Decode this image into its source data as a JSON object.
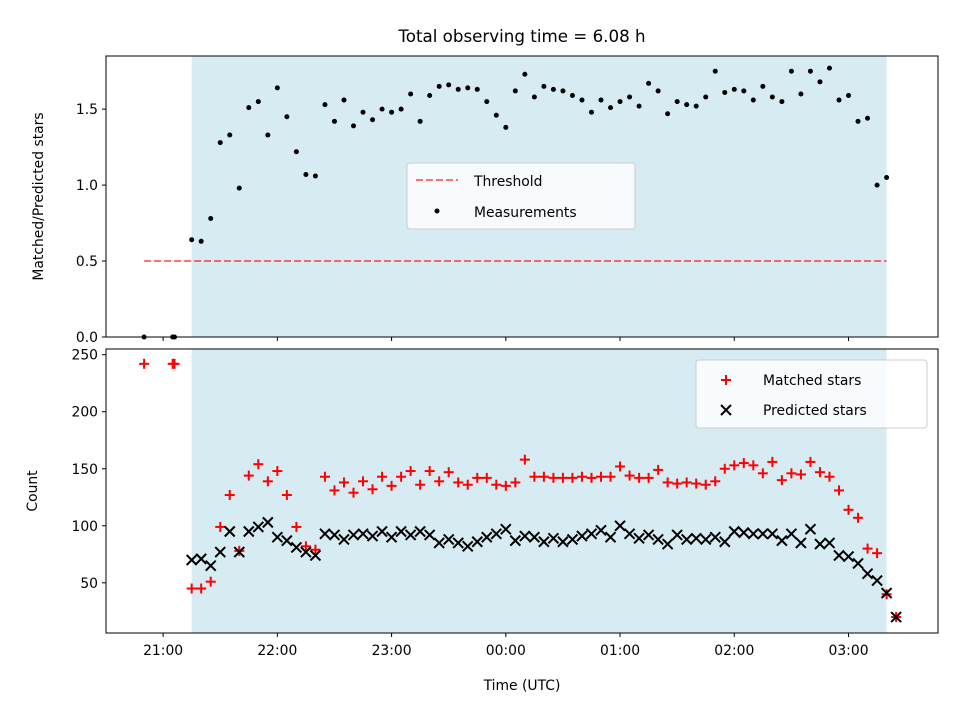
{
  "colors": {
    "shade": "#add8e6",
    "threshold": "#ff0000",
    "measurements": "#000000",
    "matched": "#ff0000",
    "predicted": "#000000"
  },
  "chart_data": [
    {
      "type": "scatter",
      "title": "Total observing time = 6.08 h",
      "xlabel": "",
      "ylabel": "Matched/Predicted stars",
      "xlim": [
        "20:30",
        "03:47"
      ],
      "ylim": [
        0,
        1.85
      ],
      "yticks": [
        0.0,
        0.5,
        1.0,
        1.5
      ],
      "ytick_labels": [
        "0.0",
        "0.5",
        "1.0",
        "1.5"
      ],
      "shaded_span": [
        "21:15",
        "03:20"
      ],
      "legend": {
        "position": "center",
        "entries": [
          "Threshold",
          "Measurements"
        ]
      },
      "threshold": {
        "name": "Threshold",
        "y": 0.5,
        "x": [
          "20:50",
          "03:20"
        ]
      },
      "series": [
        {
          "name": "Measurements",
          "points": [
            [
              "20:50",
              0.0
            ],
            [
              "21:05",
              0.0
            ],
            [
              "21:06",
              0.0
            ],
            [
              "21:15",
              0.64
            ],
            [
              "21:20",
              0.63
            ],
            [
              "21:25",
              0.78
            ],
            [
              "21:30",
              1.28
            ],
            [
              "21:35",
              1.33
            ],
            [
              "21:40",
              0.98
            ],
            [
              "21:45",
              1.51
            ],
            [
              "21:50",
              1.55
            ],
            [
              "21:55",
              1.33
            ],
            [
              "22:00",
              1.64
            ],
            [
              "22:05",
              1.45
            ],
            [
              "22:10",
              1.22
            ],
            [
              "22:15",
              1.07
            ],
            [
              "22:20",
              1.06
            ],
            [
              "22:25",
              1.53
            ],
            [
              "22:30",
              1.42
            ],
            [
              "22:35",
              1.56
            ],
            [
              "22:40",
              1.39
            ],
            [
              "22:45",
              1.48
            ],
            [
              "22:50",
              1.43
            ],
            [
              "22:55",
              1.5
            ],
            [
              "23:00",
              1.48
            ],
            [
              "23:05",
              1.5
            ],
            [
              "23:10",
              1.6
            ],
            [
              "23:15",
              1.42
            ],
            [
              "23:20",
              1.59
            ],
            [
              "23:25",
              1.65
            ],
            [
              "23:30",
              1.66
            ],
            [
              "23:35",
              1.63
            ],
            [
              "23:40",
              1.64
            ],
            [
              "23:45",
              1.63
            ],
            [
              "23:50",
              1.55
            ],
            [
              "23:55",
              1.46
            ],
            [
              "00:00",
              1.38
            ],
            [
              "00:05",
              1.62
            ],
            [
              "00:10",
              1.73
            ],
            [
              "00:15",
              1.58
            ],
            [
              "00:20",
              1.65
            ],
            [
              "00:25",
              1.63
            ],
            [
              "00:30",
              1.62
            ],
            [
              "00:35",
              1.59
            ],
            [
              "00:40",
              1.56
            ],
            [
              "00:45",
              1.48
            ],
            [
              "00:50",
              1.56
            ],
            [
              "00:55",
              1.51
            ],
            [
              "01:00",
              1.55
            ],
            [
              "01:05",
              1.58
            ],
            [
              "01:10",
              1.52
            ],
            [
              "01:15",
              1.67
            ],
            [
              "01:20",
              1.62
            ],
            [
              "01:25",
              1.47
            ],
            [
              "01:30",
              1.55
            ],
            [
              "01:35",
              1.53
            ],
            [
              "01:40",
              1.52
            ],
            [
              "01:45",
              1.58
            ],
            [
              "01:50",
              1.75
            ],
            [
              "01:55",
              1.61
            ],
            [
              "02:00",
              1.63
            ],
            [
              "02:05",
              1.62
            ],
            [
              "02:10",
              1.56
            ],
            [
              "02:15",
              1.65
            ],
            [
              "02:20",
              1.58
            ],
            [
              "02:25",
              1.55
            ],
            [
              "02:30",
              1.75
            ],
            [
              "02:35",
              1.6
            ],
            [
              "02:40",
              1.75
            ],
            [
              "02:45",
              1.68
            ],
            [
              "02:50",
              1.77
            ],
            [
              "02:55",
              1.56
            ],
            [
              "03:00",
              1.59
            ],
            [
              "03:05",
              1.42
            ],
            [
              "03:10",
              1.44
            ],
            [
              "03:15",
              1.0
            ],
            [
              "03:20",
              1.05
            ]
          ]
        }
      ]
    },
    {
      "type": "scatter",
      "title": "",
      "xlabel": "Time (UTC)",
      "ylabel": "Count",
      "xlim": [
        "20:30",
        "03:47"
      ],
      "ylim": [
        6,
        255
      ],
      "xticks": [
        "21:00",
        "22:00",
        "23:00",
        "00:00",
        "01:00",
        "02:00",
        "03:00"
      ],
      "yticks": [
        50,
        100,
        150,
        200,
        250
      ],
      "shaded_span": [
        "21:15",
        "03:20"
      ],
      "legend": {
        "position": "upper right",
        "entries": [
          "Matched stars",
          "Predicted stars"
        ]
      },
      "series": [
        {
          "name": "Matched stars",
          "marker": "+",
          "points": [
            [
              "20:50",
              242
            ],
            [
              "21:05",
              242
            ],
            [
              "21:06",
              242
            ],
            [
              "21:15",
              45
            ],
            [
              "21:20",
              45
            ],
            [
              "21:25",
              51
            ],
            [
              "21:30",
              99
            ],
            [
              "21:35",
              127
            ],
            [
              "21:40",
              78
            ],
            [
              "21:45",
              144
            ],
            [
              "21:50",
              154
            ],
            [
              "21:55",
              139
            ],
            [
              "22:00",
              148
            ],
            [
              "22:05",
              127
            ],
            [
              "22:10",
              99
            ],
            [
              "22:15",
              82
            ],
            [
              "22:20",
              79
            ],
            [
              "22:25",
              143
            ],
            [
              "22:30",
              131
            ],
            [
              "22:35",
              138
            ],
            [
              "22:40",
              129
            ],
            [
              "22:45",
              139
            ],
            [
              "22:50",
              132
            ],
            [
              "22:55",
              143
            ],
            [
              "23:00",
              135
            ],
            [
              "23:05",
              143
            ],
            [
              "23:10",
              148
            ],
            [
              "23:15",
              136
            ],
            [
              "23:20",
              148
            ],
            [
              "23:25",
              139
            ],
            [
              "23:30",
              147
            ],
            [
              "23:35",
              138
            ],
            [
              "23:40",
              136
            ],
            [
              "23:45",
              142
            ],
            [
              "23:50",
              142
            ],
            [
              "23:55",
              136
            ],
            [
              "00:00",
              135
            ],
            [
              "00:05",
              138
            ],
            [
              "00:10",
              158
            ],
            [
              "00:15",
              143
            ],
            [
              "00:20",
              143
            ],
            [
              "00:25",
              142
            ],
            [
              "00:30",
              142
            ],
            [
              "00:35",
              142
            ],
            [
              "00:40",
              143
            ],
            [
              "00:45",
              142
            ],
            [
              "00:50",
              143
            ],
            [
              "00:55",
              143
            ],
            [
              "01:00",
              152
            ],
            [
              "01:05",
              144
            ],
            [
              "01:10",
              142
            ],
            [
              "01:15",
              142
            ],
            [
              "01:20",
              149
            ],
            [
              "01:25",
              138
            ],
            [
              "01:30",
              137
            ],
            [
              "01:35",
              138
            ],
            [
              "01:40",
              137
            ],
            [
              "01:45",
              136
            ],
            [
              "01:50",
              139
            ],
            [
              "01:55",
              150
            ],
            [
              "02:00",
              153
            ],
            [
              "02:05",
              155
            ],
            [
              "02:10",
              153
            ],
            [
              "02:15",
              146
            ],
            [
              "02:20",
              156
            ],
            [
              "02:25",
              140
            ],
            [
              "02:30",
              146
            ],
            [
              "02:35",
              145
            ],
            [
              "02:40",
              156
            ],
            [
              "02:45",
              147
            ],
            [
              "02:50",
              143
            ],
            [
              "02:55",
              131
            ],
            [
              "03:00",
              114
            ],
            [
              "03:05",
              107
            ],
            [
              "03:10",
              80
            ],
            [
              "03:15",
              76
            ],
            [
              "03:20",
              40
            ],
            [
              "03:25",
              20
            ]
          ]
        },
        {
          "name": "Predicted stars",
          "marker": "x",
          "points": [
            [
              "21:15",
              70
            ],
            [
              "21:20",
              71
            ],
            [
              "21:25",
              65
            ],
            [
              "21:30",
              77
            ],
            [
              "21:35",
              95
            ],
            [
              "21:40",
              77
            ],
            [
              "21:45",
              95
            ],
            [
              "21:50",
              99
            ],
            [
              "21:55",
              103
            ],
            [
              "22:00",
              90
            ],
            [
              "22:05",
              87
            ],
            [
              "22:10",
              81
            ],
            [
              "22:15",
              77
            ],
            [
              "22:20",
              74
            ],
            [
              "22:25",
              93
            ],
            [
              "22:30",
              92
            ],
            [
              "22:35",
              88
            ],
            [
              "22:40",
              92
            ],
            [
              "22:45",
              93
            ],
            [
              "22:50",
              91
            ],
            [
              "22:55",
              95
            ],
            [
              "23:00",
              90
            ],
            [
              "23:05",
              95
            ],
            [
              "23:10",
              92
            ],
            [
              "23:15",
              95
            ],
            [
              "23:20",
              92
            ],
            [
              "23:25",
              85
            ],
            [
              "23:30",
              88
            ],
            [
              "23:35",
              85
            ],
            [
              "23:40",
              82
            ],
            [
              "23:45",
              86
            ],
            [
              "23:50",
              90
            ],
            [
              "23:55",
              93
            ],
            [
              "00:00",
              97
            ],
            [
              "00:05",
              87
            ],
            [
              "00:10",
              91
            ],
            [
              "00:15",
              90
            ],
            [
              "00:20",
              86
            ],
            [
              "00:25",
              89
            ],
            [
              "00:30",
              86
            ],
            [
              "00:35",
              88
            ],
            [
              "00:40",
              91
            ],
            [
              "00:45",
              93
            ],
            [
              "00:50",
              96
            ],
            [
              "00:55",
              90
            ],
            [
              "01:00",
              100
            ],
            [
              "01:05",
              93
            ],
            [
              "01:10",
              89
            ],
            [
              "01:15",
              92
            ],
            [
              "01:20",
              88
            ],
            [
              "01:25",
              84
            ],
            [
              "01:30",
              92
            ],
            [
              "01:35",
              88
            ],
            [
              "01:40",
              89
            ],
            [
              "01:45",
              88
            ],
            [
              "01:50",
              90
            ],
            [
              "01:55",
              86
            ],
            [
              "02:00",
              95
            ],
            [
              "02:05",
              94
            ],
            [
              "02:10",
              93
            ],
            [
              "02:15",
              93
            ],
            [
              "02:20",
              93
            ],
            [
              "02:25",
              87
            ],
            [
              "02:30",
              93
            ],
            [
              "02:35",
              85
            ],
            [
              "02:40",
              97
            ],
            [
              "02:45",
              84
            ],
            [
              "02:50",
              85
            ],
            [
              "02:55",
              74
            ],
            [
              "03:00",
              73
            ],
            [
              "03:05",
              67
            ],
            [
              "03:10",
              58
            ],
            [
              "03:15",
              52
            ],
            [
              "03:20",
              41
            ],
            [
              "03:25",
              20
            ]
          ]
        }
      ]
    }
  ]
}
